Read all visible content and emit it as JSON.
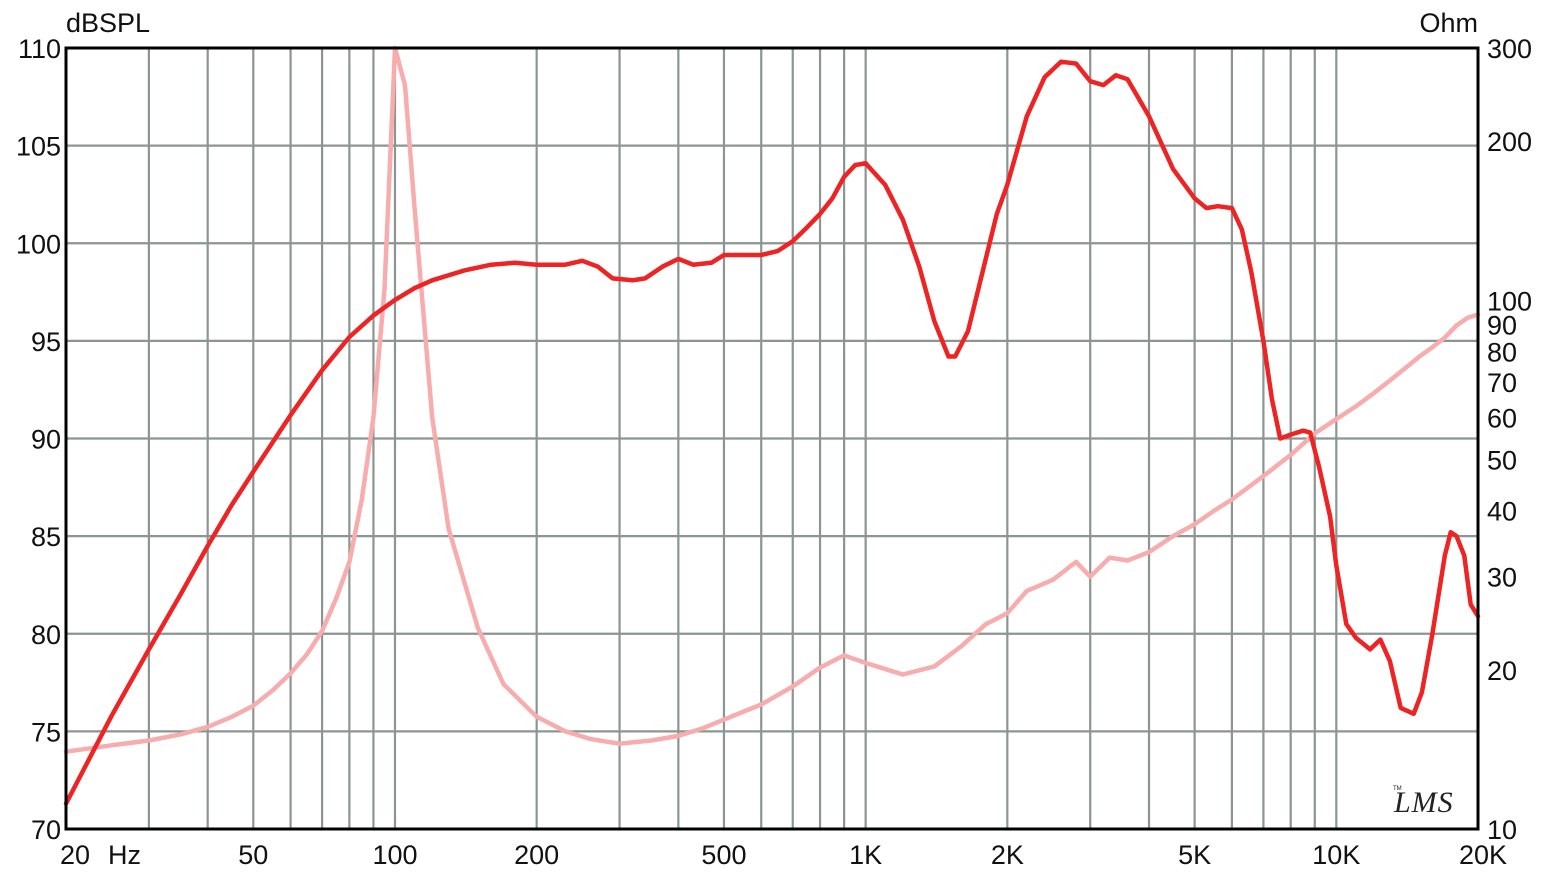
{
  "chart_data": {
    "type": "line",
    "xscale": "log",
    "xlim": [
      20,
      20000
    ],
    "ylim": [
      70,
      110
    ],
    "y2lim": [
      10,
      300
    ],
    "y2scale": "log",
    "grid": true,
    "left_unit": "dBSPL",
    "right_unit": "Ohm",
    "x_unit": "Hz",
    "x_ticks": [
      {
        "value": 20,
        "label": "20"
      },
      {
        "value": 50,
        "label": "50"
      },
      {
        "value": 100,
        "label": "100"
      },
      {
        "value": 200,
        "label": "200"
      },
      {
        "value": 500,
        "label": "500"
      },
      {
        "value": 1000,
        "label": "1K"
      },
      {
        "value": 2000,
        "label": "2K"
      },
      {
        "value": 5000,
        "label": "5K"
      },
      {
        "value": 10000,
        "label": "10K"
      },
      {
        "value": 20000,
        "label": "20K"
      }
    ],
    "y_ticks": [
      {
        "value": 70,
        "label": "70"
      },
      {
        "value": 75,
        "label": "75"
      },
      {
        "value": 80,
        "label": "80"
      },
      {
        "value": 85,
        "label": "85"
      },
      {
        "value": 90,
        "label": "90"
      },
      {
        "value": 95,
        "label": "95"
      },
      {
        "value": 100,
        "label": "100"
      },
      {
        "value": 105,
        "label": "105"
      },
      {
        "value": 110,
        "label": "110"
      }
    ],
    "y2_ticks": [
      {
        "value": 10,
        "label": "10"
      },
      {
        "value": 20,
        "label": "20"
      },
      {
        "value": 30,
        "label": "30"
      },
      {
        "value": 40,
        "label": "40"
      },
      {
        "value": 50,
        "label": "50"
      },
      {
        "value": 60,
        "label": "60"
      },
      {
        "value": 70,
        "label": "70"
      },
      {
        "value": 80,
        "label": "80"
      },
      {
        "value": 90,
        "label": "90"
      },
      {
        "value": 100,
        "label": "100"
      },
      {
        "value": 200,
        "label": "200"
      },
      {
        "value": 300,
        "label": "300"
      }
    ],
    "series": [
      {
        "axis": "left",
        "color": "#ee2424",
        "points": [
          [
            20,
            71.3
          ],
          [
            25,
            75.8
          ],
          [
            30,
            79.2
          ],
          [
            35,
            82
          ],
          [
            40,
            84.5
          ],
          [
            45,
            86.6
          ],
          [
            50,
            88.3
          ],
          [
            60,
            91.2
          ],
          [
            70,
            93.5
          ],
          [
            80,
            95.2
          ],
          [
            90,
            96.3
          ],
          [
            100,
            97.1
          ],
          [
            110,
            97.7
          ],
          [
            120,
            98.1
          ],
          [
            140,
            98.6
          ],
          [
            160,
            98.9
          ],
          [
            180,
            99
          ],
          [
            200,
            98.9
          ],
          [
            230,
            98.9
          ],
          [
            250,
            99.1
          ],
          [
            270,
            98.8
          ],
          [
            290,
            98.2
          ],
          [
            320,
            98.1
          ],
          [
            340,
            98.2
          ],
          [
            370,
            98.8
          ],
          [
            400,
            99.2
          ],
          [
            430,
            98.9
          ],
          [
            470,
            99
          ],
          [
            500,
            99.4
          ],
          [
            550,
            99.4
          ],
          [
            600,
            99.4
          ],
          [
            650,
            99.6
          ],
          [
            700,
            100.1
          ],
          [
            750,
            100.8
          ],
          [
            800,
            101.5
          ],
          [
            850,
            102.3
          ],
          [
            900,
            103.4
          ],
          [
            950,
            104
          ],
          [
            1000,
            104.1
          ],
          [
            1100,
            103
          ],
          [
            1200,
            101.2
          ],
          [
            1300,
            98.8
          ],
          [
            1400,
            96
          ],
          [
            1500,
            94.2
          ],
          [
            1550,
            94.2
          ],
          [
            1650,
            95.5
          ],
          [
            1750,
            98
          ],
          [
            1900,
            101.5
          ],
          [
            2000,
            103
          ],
          [
            2200,
            106.5
          ],
          [
            2400,
            108.5
          ],
          [
            2600,
            109.3
          ],
          [
            2800,
            109.2
          ],
          [
            3000,
            108.3
          ],
          [
            3200,
            108.1
          ],
          [
            3400,
            108.6
          ],
          [
            3600,
            108.4
          ],
          [
            4000,
            106.5
          ],
          [
            4500,
            103.8
          ],
          [
            5000,
            102.3
          ],
          [
            5300,
            101.8
          ],
          [
            5600,
            101.9
          ],
          [
            6000,
            101.8
          ],
          [
            6300,
            100.7
          ],
          [
            6600,
            98.5
          ],
          [
            7000,
            95
          ],
          [
            7300,
            92
          ],
          [
            7600,
            90
          ],
          [
            8000,
            90.2
          ],
          [
            8500,
            90.4
          ],
          [
            8800,
            90.3
          ],
          [
            9200,
            88.5
          ],
          [
            9700,
            86
          ],
          [
            10000,
            83.5
          ],
          [
            10500,
            80.5
          ],
          [
            11000,
            79.8
          ],
          [
            11800,
            79.2
          ],
          [
            12400,
            79.7
          ],
          [
            13000,
            78.6
          ],
          [
            13700,
            76.2
          ],
          [
            14600,
            75.9
          ],
          [
            15200,
            77
          ],
          [
            16000,
            80
          ],
          [
            17000,
            84
          ],
          [
            17500,
            85.2
          ],
          [
            18000,
            85
          ],
          [
            18700,
            84
          ],
          [
            19300,
            81.5
          ],
          [
            20000,
            80.9
          ]
        ]
      },
      {
        "axis": "right",
        "color": "#f7adad",
        "points": [
          [
            20,
            14
          ],
          [
            25,
            14.4
          ],
          [
            30,
            14.7
          ],
          [
            35,
            15.1
          ],
          [
            40,
            15.6
          ],
          [
            45,
            16.3
          ],
          [
            50,
            17.1
          ],
          [
            55,
            18.3
          ],
          [
            60,
            19.7
          ],
          [
            65,
            21.4
          ],
          [
            70,
            23.7
          ],
          [
            75,
            27.3
          ],
          [
            80,
            32
          ],
          [
            85,
            42
          ],
          [
            90,
            60
          ],
          [
            95,
            105
          ],
          [
            100,
            300
          ],
          [
            105,
            255
          ],
          [
            110,
            150
          ],
          [
            120,
            60
          ],
          [
            130,
            37
          ],
          [
            150,
            24
          ],
          [
            170,
            18.8
          ],
          [
            200,
            16.3
          ],
          [
            230,
            15.3
          ],
          [
            260,
            14.8
          ],
          [
            300,
            14.5
          ],
          [
            350,
            14.7
          ],
          [
            400,
            15
          ],
          [
            450,
            15.5
          ],
          [
            500,
            16.1
          ],
          [
            600,
            17.2
          ],
          [
            700,
            18.6
          ],
          [
            800,
            20.2
          ],
          [
            900,
            21.3
          ],
          [
            1000,
            20.6
          ],
          [
            1200,
            19.6
          ],
          [
            1400,
            20.3
          ],
          [
            1600,
            22.2
          ],
          [
            1800,
            24.4
          ],
          [
            2000,
            25.6
          ],
          [
            2200,
            28.2
          ],
          [
            2500,
            29.6
          ],
          [
            2800,
            32
          ],
          [
            3000,
            30
          ],
          [
            3300,
            32.6
          ],
          [
            3600,
            32.2
          ],
          [
            4000,
            33.4
          ],
          [
            4500,
            35.8
          ],
          [
            5000,
            37.7
          ],
          [
            5500,
            40
          ],
          [
            6000,
            42
          ],
          [
            7000,
            46.5
          ],
          [
            8000,
            51
          ],
          [
            9000,
            56
          ],
          [
            10000,
            59.6
          ],
          [
            11000,
            63
          ],
          [
            12000,
            66.7
          ],
          [
            13000,
            70.5
          ],
          [
            14000,
            74.4
          ],
          [
            15000,
            78.2
          ],
          [
            16000,
            81.5
          ],
          [
            17000,
            85
          ],
          [
            18000,
            89.6
          ],
          [
            19000,
            92.6
          ],
          [
            20000,
            94
          ]
        ]
      }
    ]
  }
}
